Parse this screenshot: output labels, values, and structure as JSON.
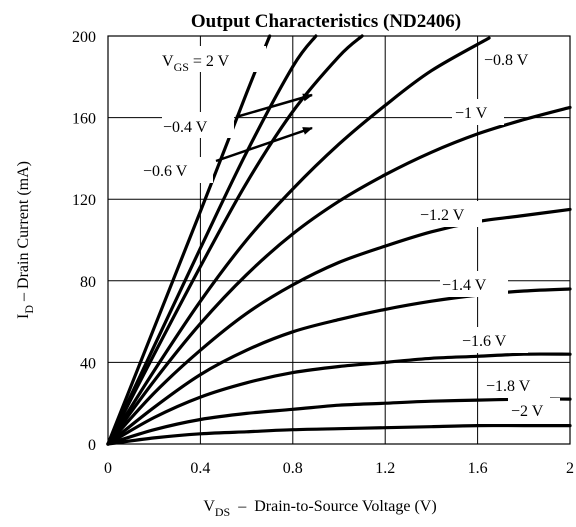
{
  "chart_data": {
    "type": "line",
    "title": "Output Characteristics (ND2406)",
    "xlabel": {
      "main": "V",
      "sub": "DS",
      "rest": "  –  Drain-to-Source Voltage (V)"
    },
    "ylabel": {
      "main": "I",
      "sub": "D",
      "rest": " – Drain Current (mA)"
    },
    "xlim": [
      0,
      2
    ],
    "ylim": [
      0,
      200
    ],
    "xticks": [
      0,
      0.4,
      0.8,
      1.2,
      1.6,
      2
    ],
    "xtick_labels": [
      "0",
      "0.4",
      "0.8",
      "1.2",
      "1.6",
      "2"
    ],
    "yticks": [
      0,
      40,
      80,
      120,
      160,
      200
    ],
    "ytick_labels": [
      "0",
      "40",
      "80",
      "120",
      "160",
      "200"
    ],
    "grid": true,
    "series": [
      {
        "name": "VGS = 2 V",
        "x": [
          0,
          0.2,
          0.4,
          0.6,
          0.7
        ],
        "y": [
          0,
          57,
          114,
          172,
          200
        ]
      },
      {
        "name": "−0.4 V",
        "x": [
          0,
          0.2,
          0.4,
          0.6,
          0.8,
          0.9
        ],
        "y": [
          0,
          48,
          96,
          143,
          185,
          200
        ]
      },
      {
        "name": "−0.6 V",
        "x": [
          0,
          0.2,
          0.4,
          0.6,
          0.8,
          1.0,
          1.1
        ],
        "y": [
          0,
          44,
          87,
          128,
          163,
          190,
          200
        ]
      },
      {
        "name": "−0.8 V",
        "x": [
          0,
          0.2,
          0.4,
          0.6,
          0.8,
          1.0,
          1.2,
          1.4,
          1.65
        ],
        "y": [
          0,
          36,
          70,
          100,
          125,
          147,
          166,
          183,
          199
        ]
      },
      {
        "name": "−1 V",
        "x": [
          0,
          0.2,
          0.4,
          0.6,
          0.8,
          1.0,
          1.2,
          1.4,
          1.6,
          1.8,
          2.0
        ],
        "y": [
          0,
          31,
          59,
          83,
          103,
          119,
          132,
          143,
          152,
          159,
          165
        ]
      },
      {
        "name": "−1.2 V",
        "x": [
          0,
          0.2,
          0.4,
          0.6,
          0.8,
          1.0,
          1.2,
          1.4,
          1.6,
          1.8,
          2.0
        ],
        "y": [
          0,
          25,
          46,
          64,
          78,
          89,
          97,
          104,
          109,
          112,
          115
        ]
      },
      {
        "name": "−1.4 V",
        "x": [
          0,
          0.2,
          0.4,
          0.6,
          0.8,
          1.0,
          1.2,
          1.4,
          1.6,
          1.8,
          2.0
        ],
        "y": [
          0,
          18,
          34,
          46,
          55,
          61,
          66,
          70,
          73,
          75,
          76
        ]
      },
      {
        "name": "−1.6 V",
        "x": [
          0,
          0.2,
          0.4,
          0.6,
          0.8,
          1.0,
          1.2,
          1.4,
          1.6,
          1.8,
          2.0
        ],
        "y": [
          0,
          13,
          23,
          30,
          35,
          38,
          40,
          42,
          43,
          44,
          44
        ]
      },
      {
        "name": "−1.8 V",
        "x": [
          0,
          0.2,
          0.4,
          0.6,
          0.8,
          1.0,
          1.2,
          1.4,
          1.6,
          1.8,
          2.0
        ],
        "y": [
          0,
          7,
          12,
          15,
          17,
          19,
          20,
          21,
          21.5,
          22,
          22
        ]
      },
      {
        "name": "−2 V",
        "x": [
          0,
          0.2,
          0.4,
          0.6,
          0.8,
          1.0,
          1.2,
          1.4,
          1.6,
          1.8,
          2.0
        ],
        "y": [
          0,
          3,
          5,
          6,
          7,
          7.5,
          8,
          8.5,
          9,
          9,
          9
        ]
      }
    ],
    "annotations": [
      {
        "type": "label",
        "main": "V",
        "sub": "GS",
        "rest": " = 2 V"
      },
      {
        "type": "label",
        "text": "−0.4 V"
      },
      {
        "type": "label",
        "text": "−0.6 V"
      },
      {
        "type": "label",
        "text": "−0.8 V"
      },
      {
        "type": "label",
        "text": "−1 V"
      },
      {
        "type": "label",
        "text": "−1.2 V"
      },
      {
        "type": "label",
        "text": "−1.4 V"
      },
      {
        "type": "label",
        "text": "−1.6 V"
      },
      {
        "type": "label",
        "text": "−1.8 V"
      },
      {
        "type": "label",
        "text": "−2 V"
      }
    ]
  }
}
